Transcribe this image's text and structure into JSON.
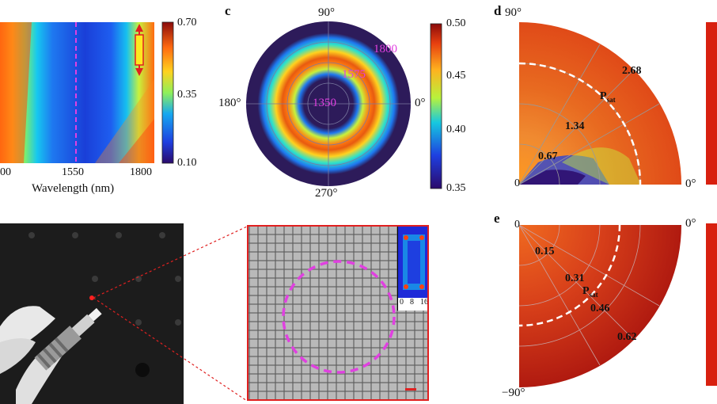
{
  "panel_b": {
    "xticks": [
      "00",
      "1550",
      "1800"
    ],
    "xlabel": "Wavelength (nm)",
    "cbar_ticks": [
      "0.70",
      "0.35",
      "0.10"
    ]
  },
  "panel_c": {
    "letter": "c",
    "angles": [
      "90°",
      "180°",
      "0°",
      "270°"
    ],
    "rings": [
      "1350",
      "1575",
      "1800"
    ],
    "cbar_ticks": [
      "0.50",
      "0.45",
      "0.40",
      "0.35"
    ]
  },
  "panel_d": {
    "letter": "d",
    "angle_top": "90°",
    "angle_right": "0°",
    "origin": "0",
    "radii": [
      "0.67",
      "1.34",
      "2.68"
    ],
    "psat": "P",
    "psat_sub": "sat"
  },
  "panel_e": {
    "letter": "e",
    "angle_top": "0°",
    "angle_bottom": "−90°",
    "origin": "0",
    "radii": [
      "0.15",
      "0.31",
      "0.46",
      "0.62"
    ],
    "psat": "P",
    "psat_sub": "sat"
  },
  "inset": {
    "ticks": [
      "0",
      "8",
      "16"
    ]
  },
  "colors": {
    "jet": [
      "#2b0a6b",
      "#1e3fe0",
      "#16a8f0",
      "#2fe2c9",
      "#b8f23c",
      "#ffd21f",
      "#ff7a10",
      "#d8200f",
      "#8a0b0b"
    ],
    "marker": "#e040e0",
    "frame_red": "#e02020",
    "polar_bg": "#2d1b5a"
  }
}
